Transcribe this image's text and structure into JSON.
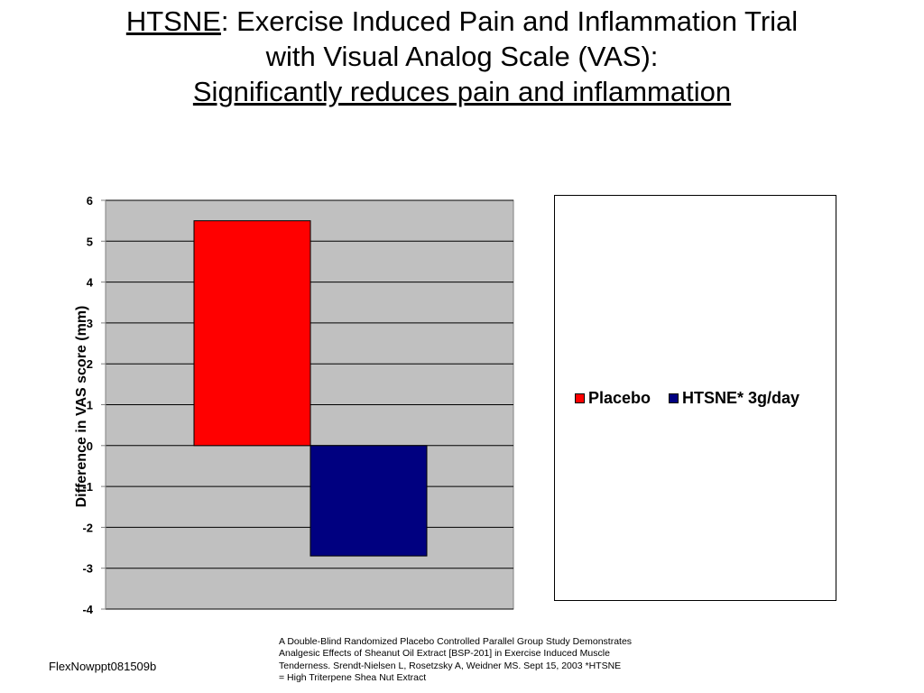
{
  "title": {
    "line1_lead": "HTSNE",
    "line1_rest": ":  Exercise Induced Pain and Inflammation Trial",
    "line2": "with Visual Analog Scale (VAS):",
    "line3": "Significantly reduces pain and inflammation"
  },
  "chart_data": {
    "type": "bar",
    "categories": [
      ""
    ],
    "series": [
      {
        "name": "Placebo",
        "values": [
          5.5
        ],
        "color": "#ff0000"
      },
      {
        "name": "HTSNE* 3g/day",
        "values": [
          -2.7
        ],
        "color": "#000080"
      }
    ],
    "xlabel": "",
    "ylabel": "Difference in VAS score (mm)",
    "ylim": [
      -4,
      6
    ],
    "yticks": [
      "6",
      "5",
      "4",
      "3",
      "2",
      "1",
      "0",
      "-1",
      "-2",
      "-3",
      "-4"
    ],
    "plot_background": "#c0c0c0",
    "grid": true,
    "legend": "right"
  },
  "citation": {
    "line1": "A Double-Blind Randomized Placebo Controlled Parallel Group Study Demonstrates",
    "line2": "Analgesic Effects of Sheanut Oil Extract [BSP-201] in Exercise Induced Muscle",
    "line3": "Tenderness.  Srendt-Nielsen L, Rosetzsky A, Weidner MS. Sept 15, 2003 *HTSNE",
    "line4": "= High Triterpene Shea Nut Extract"
  },
  "footer_code": "FlexNowppt081509b"
}
